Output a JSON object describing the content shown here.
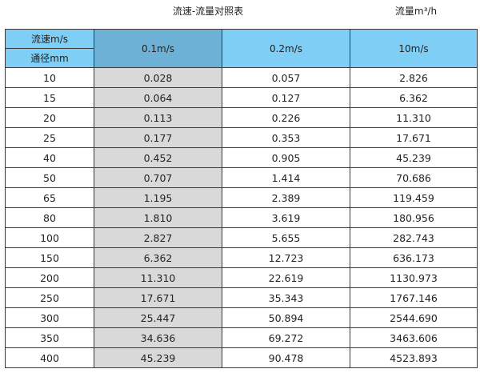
{
  "title": "流速-流量对照表",
  "unit_label": "流量m³/h",
  "header": {
    "velocity_label": "流速m/s",
    "diameter_label": "通径mm",
    "columns": [
      "0.1m/s",
      "0.2m/s",
      "10m/s"
    ]
  },
  "colors": {
    "header": "#7ecef5",
    "header_highlight": "#6db2d6",
    "highlight_column": "#d9d9d9"
  },
  "rows": [
    [
      "10",
      "0.028",
      "0.057",
      "2.826"
    ],
    [
      "15",
      "0.064",
      "0.127",
      "6.362"
    ],
    [
      "20",
      "0.113",
      "0.226",
      "11.310"
    ],
    [
      "25",
      "0.177",
      "0.353",
      "17.671"
    ],
    [
      "40",
      "0.452",
      "0.905",
      "45.239"
    ],
    [
      "50",
      "0.707",
      "1.414",
      "70.686"
    ],
    [
      "65",
      "1.195",
      "2.389",
      "119.459"
    ],
    [
      "80",
      "1.810",
      "3.619",
      "180.956"
    ],
    [
      "100",
      "2.827",
      "5.655",
      "282.743"
    ],
    [
      "150",
      "6.362",
      "12.723",
      "636.173"
    ],
    [
      "200",
      "11.310",
      "22.619",
      "1130.973"
    ],
    [
      "250",
      "17.671",
      "35.343",
      "1767.146"
    ],
    [
      "300",
      "25.447",
      "50.894",
      "2544.690"
    ],
    [
      "350",
      "34.636",
      "69.272",
      "3463.606"
    ],
    [
      "400",
      "45.239",
      "90.478",
      "4523.893"
    ]
  ]
}
